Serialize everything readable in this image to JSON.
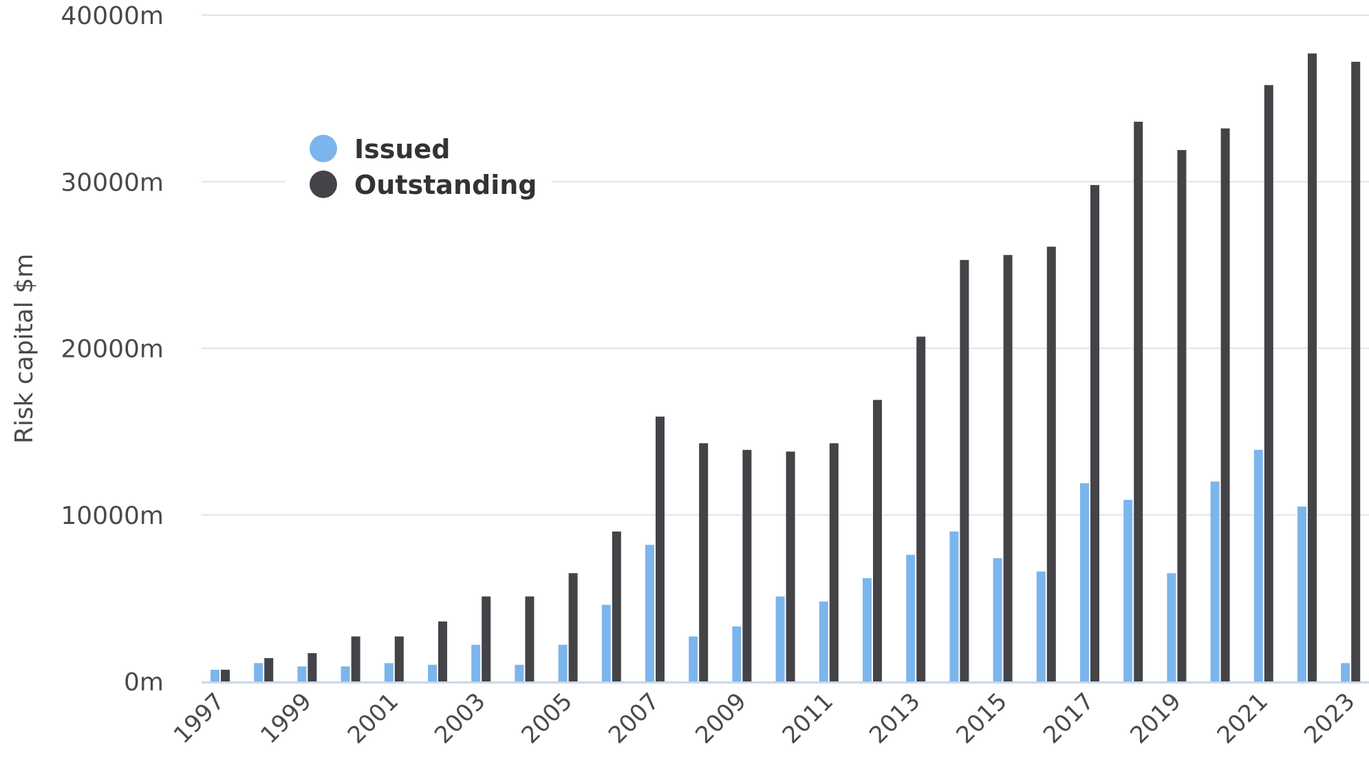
{
  "chart_data": {
    "type": "bar",
    "xlabel": "",
    "ylabel": "Risk capital $m",
    "ylim": [
      0,
      40000
    ],
    "y_ticks": [
      0,
      10000,
      20000,
      30000,
      40000
    ],
    "y_tick_labels": [
      "0m",
      "10000m",
      "20000m",
      "30000m",
      "40000m"
    ],
    "grid": true,
    "legend_position": "top-left",
    "categories": [
      "1997",
      "1998",
      "1999",
      "2000",
      "2001",
      "2002",
      "2003",
      "2004",
      "2005",
      "2006",
      "2007",
      "2008",
      "2009",
      "2010",
      "2011",
      "2012",
      "2013",
      "2014",
      "2015",
      "2016",
      "2017",
      "2018",
      "2019",
      "2020",
      "2021",
      "2022",
      "2023"
    ],
    "x_tick_labels": [
      "1997",
      "",
      "1999",
      "",
      "2001",
      "",
      "2003",
      "",
      "2005",
      "",
      "2007",
      "",
      "2009",
      "",
      "2011",
      "",
      "2013",
      "",
      "2015",
      "",
      "2017",
      "",
      "2019",
      "",
      "2021",
      "",
      "2023"
    ],
    "series": [
      {
        "name": "Issued",
        "color": "#7cb5ec",
        "values": [
          700,
          1100,
          900,
          900,
          1100,
          1000,
          2200,
          1000,
          2200,
          4600,
          8200,
          2700,
          3300,
          5100,
          4800,
          6200,
          7600,
          9000,
          7400,
          6600,
          11900,
          10900,
          6500,
          12000,
          13900,
          10500,
          1100
        ]
      },
      {
        "name": "Outstanding",
        "color": "#434348",
        "values": [
          700,
          1400,
          1700,
          2700,
          2700,
          3600,
          5100,
          5100,
          6500,
          9000,
          15900,
          14300,
          13900,
          13800,
          14300,
          16900,
          20700,
          25300,
          25600,
          26100,
          29800,
          33600,
          31900,
          33200,
          35800,
          37700,
          37200
        ]
      }
    ]
  }
}
